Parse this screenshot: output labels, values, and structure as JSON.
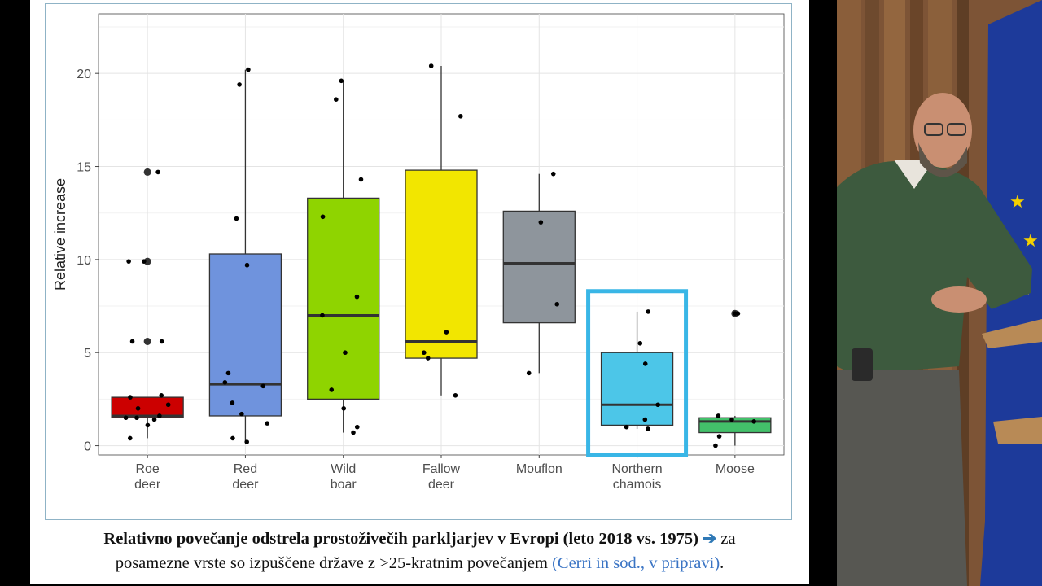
{
  "chart_data": {
    "type": "boxplot",
    "ylabel": "Relative increase",
    "xlabel": "",
    "ylim": [
      -0.5,
      23.2
    ],
    "yticks": [
      0,
      5,
      10,
      15,
      20
    ],
    "grid": true,
    "highlight_category": "Northern chamois",
    "categories": [
      {
        "name": "Roe deer",
        "label_lines": [
          "Roe",
          "deer"
        ],
        "color": "#cc0000",
        "q1": 1.5,
        "median": 1.6,
        "q3": 2.6,
        "whisker_low": 0.4,
        "whisker_high": 2.6,
        "outliers": [
          14.7,
          9.9,
          5.6
        ],
        "points": [
          14.7,
          9.9,
          9.9,
          5.6,
          5.6,
          2.7,
          2.6,
          2.2,
          2.0,
          1.6,
          1.5,
          1.5,
          1.4,
          1.1,
          0.4
        ]
      },
      {
        "name": "Red deer",
        "label_lines": [
          "Red",
          "deer"
        ],
        "color": "#6f93dd",
        "q1": 1.6,
        "median": 3.3,
        "q3": 10.3,
        "whisker_low": 0.2,
        "whisker_high": 20.2,
        "outliers": [],
        "points": [
          20.2,
          19.4,
          12.2,
          9.7,
          3.9,
          3.4,
          3.2,
          2.3,
          1.7,
          1.2,
          0.4,
          0.2
        ]
      },
      {
        "name": "Wild boar",
        "label_lines": [
          "Wild",
          "boar"
        ],
        "color": "#8fd400",
        "q1": 2.5,
        "median": 7.0,
        "q3": 13.3,
        "whisker_low": 0.7,
        "whisker_high": 19.6,
        "outliers": [],
        "points": [
          19.6,
          18.6,
          14.3,
          12.3,
          8.0,
          7.0,
          5.0,
          3.0,
          2.0,
          1.0,
          0.7
        ]
      },
      {
        "name": "Fallow deer",
        "label_lines": [
          "Fallow",
          "deer"
        ],
        "color": "#f2e600",
        "q1": 4.7,
        "median": 5.6,
        "q3": 14.8,
        "whisker_low": 2.7,
        "whisker_high": 20.4,
        "outliers": [],
        "points": [
          20.4,
          17.7,
          6.1,
          5.0,
          4.7,
          2.7
        ]
      },
      {
        "name": "Mouflon",
        "label_lines": [
          "Mouflon"
        ],
        "color": "#8e959c",
        "q1": 6.6,
        "median": 9.8,
        "q3": 12.6,
        "whisker_low": 3.9,
        "whisker_high": 14.6,
        "outliers": [],
        "points": [
          14.6,
          12.0,
          7.6,
          3.9
        ]
      },
      {
        "name": "Northern chamois",
        "label_lines": [
          "Northern",
          "chamois"
        ],
        "color": "#4cc6e8",
        "q1": 1.1,
        "median": 2.2,
        "q3": 5.0,
        "whisker_low": 0.9,
        "whisker_high": 7.2,
        "outliers": [],
        "points": [
          7.2,
          5.5,
          4.4,
          2.2,
          1.4,
          1.0,
          0.9
        ]
      },
      {
        "name": "Moose",
        "label_lines": [
          "Moose"
        ],
        "color": "#43c06a",
        "q1": 0.7,
        "median": 1.3,
        "q3": 1.5,
        "whisker_low": 0.0,
        "whisker_high": 1.6,
        "outliers": [
          7.1
        ],
        "points": [
          7.1,
          7.1,
          1.6,
          1.4,
          1.3,
          0.5,
          0.0
        ]
      }
    ]
  },
  "caption": {
    "bold_text": "Relativno povečanje odstrela prostoživečih parkljarjev v Evropi (leto 2018 vs. 1975)",
    "arrow": "➔",
    "text_1": " za",
    "text_2": "posamezne vrste so izpuščene države z >25-kratnim povečanjem ",
    "citation": "(Cerri in sod., v pripravi)",
    "end": "."
  }
}
